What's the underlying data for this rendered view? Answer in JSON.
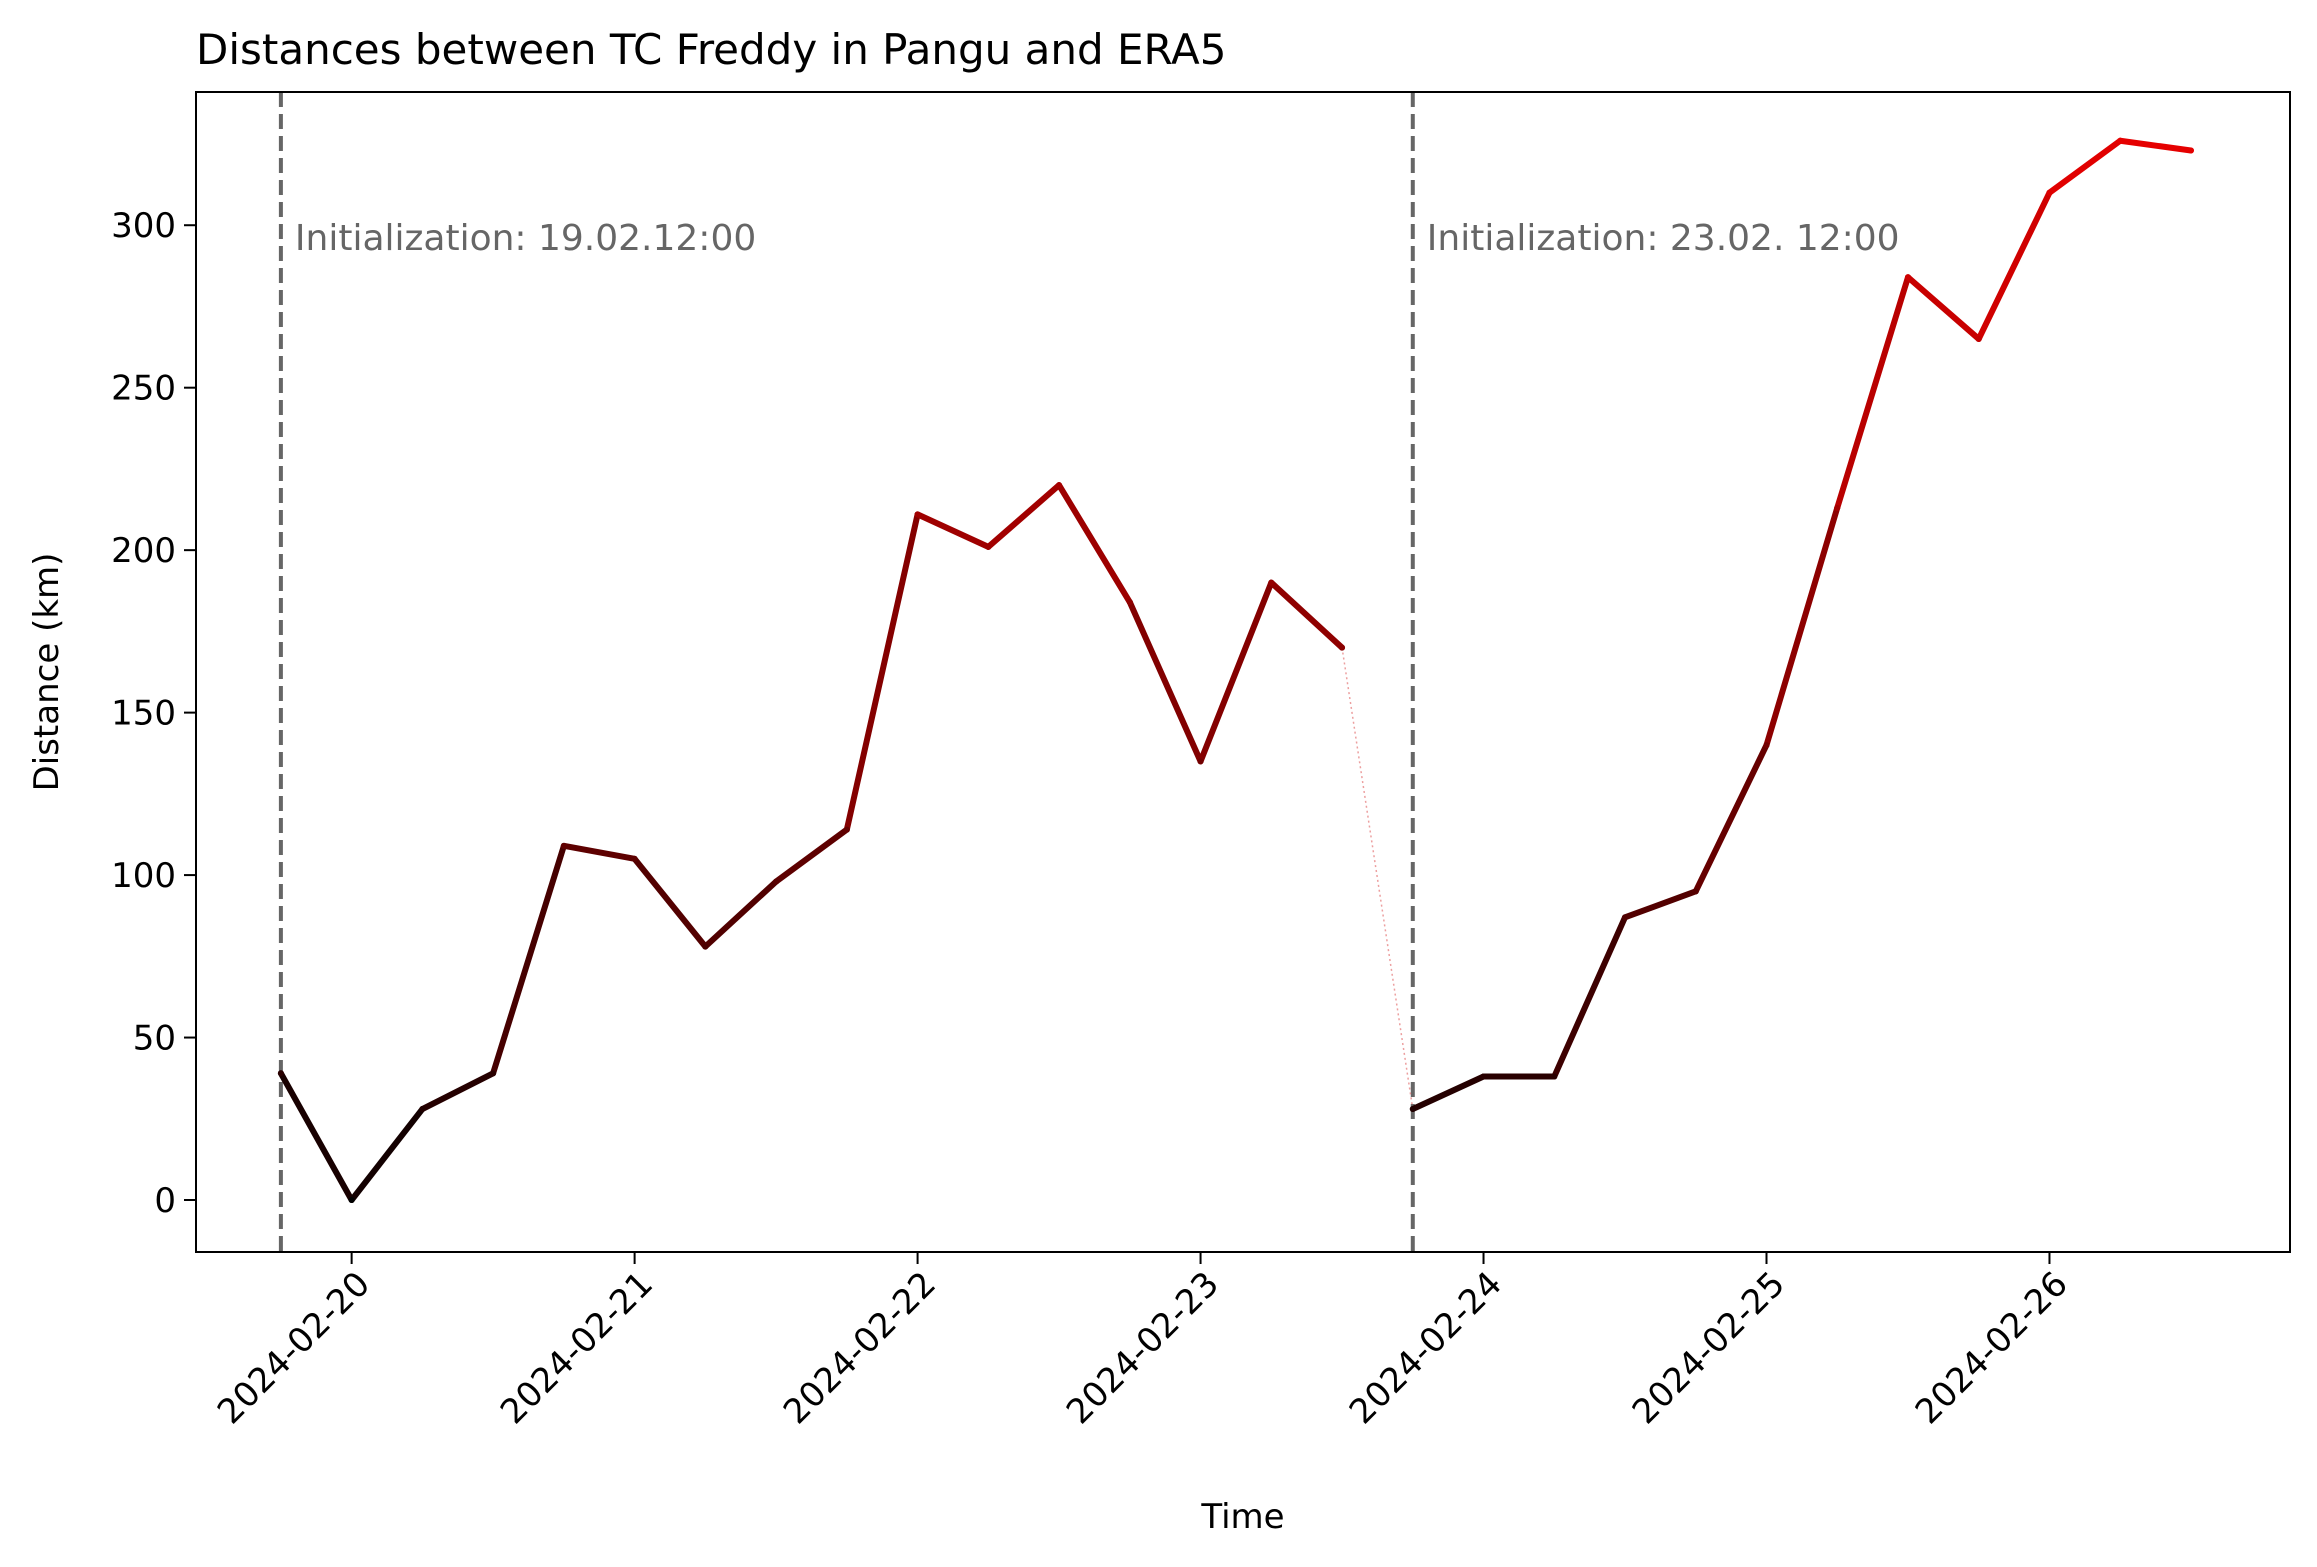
{
  "chart_data": {
    "type": "line",
    "title": "Distances between TC Freddy in Pangu and ERA5",
    "xlabel": "Time",
    "ylabel": "Distance (km)",
    "xlim": [
      "2024-02-19T10:48",
      "2024-02-26T20:24"
    ],
    "ylim": [
      -16,
      341
    ],
    "x_ticks": [
      "2024-02-20",
      "2024-02-21",
      "2024-02-22",
      "2024-02-23",
      "2024-02-24",
      "2024-02-25",
      "2024-02-26"
    ],
    "y_ticks": [
      0,
      50,
      100,
      150,
      200,
      250,
      300
    ],
    "grid": false,
    "annotations": [
      {
        "x": "2024-02-19T18:00",
        "label": "Initialization: 19.02.12:00"
      },
      {
        "x": "2024-02-23T18:00",
        "label": "Initialization: 23.02. 12:00"
      }
    ],
    "series": [
      {
        "x": [
          "2024-02-19T18:00",
          "2024-02-20T00:00",
          "2024-02-20T06:00",
          "2024-02-20T12:00",
          "2024-02-20T18:00",
          "2024-02-21T00:00",
          "2024-02-21T06:00",
          "2024-02-21T12:00",
          "2024-02-21T18:00",
          "2024-02-22T00:00",
          "2024-02-22T06:00",
          "2024-02-22T12:00",
          "2024-02-22T18:00",
          "2024-02-23T00:00",
          "2024-02-23T06:00",
          "2024-02-23T12:00"
        ],
        "values": [
          39,
          0,
          28,
          39,
          109,
          105,
          78,
          98,
          114,
          211,
          201,
          220,
          184,
          135,
          190,
          170
        ]
      },
      {
        "x": [
          "2024-02-23T18:00",
          "2024-02-24T00:00",
          "2024-02-24T06:00",
          "2024-02-24T12:00",
          "2024-02-24T18:00",
          "2024-02-25T00:00",
          "2024-02-25T06:00",
          "2024-02-25T12:00",
          "2024-02-25T18:00",
          "2024-02-26T00:00",
          "2024-02-26T06:00",
          "2024-02-26T12:00"
        ],
        "values": [
          28,
          38,
          38,
          87,
          95,
          140,
          213,
          284,
          265,
          310,
          326,
          323
        ]
      }
    ]
  }
}
